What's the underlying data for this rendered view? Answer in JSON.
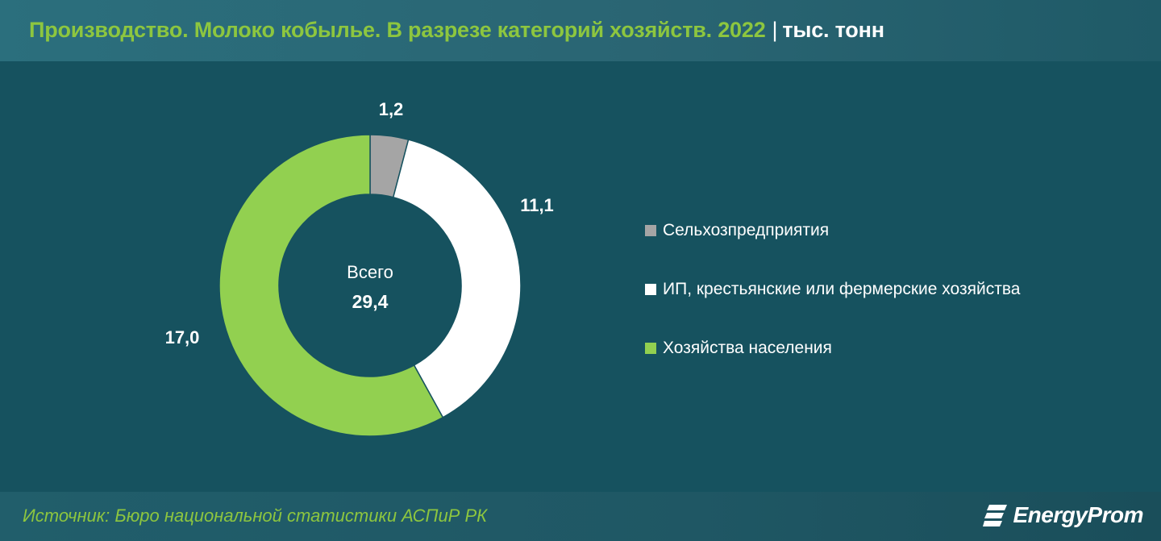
{
  "header": {
    "title": "Производство. Молоко кобылье. В разрезе категорий хозяйств. 2022",
    "separator": "|",
    "unit": "тыс. тонн"
  },
  "footer": {
    "source": "Источник: Бюро национальной статистики АСПиР РК",
    "logo_text": "EnergyProm"
  },
  "colors": {
    "background": "#16525f",
    "accent": "#8dc63f"
  },
  "chart_data": {
    "type": "pie",
    "style": "donut",
    "categories": [
      "Сельхозпредприятия",
      "ИП, крестьянские или фермерские хозяйства",
      "Хозяйства населения"
    ],
    "values": [
      1.2,
      11.1,
      17.0
    ],
    "labels": [
      "1,2",
      "11,1",
      "17,0"
    ],
    "colors": [
      "#a5a5a5",
      "#ffffff",
      "#92d050"
    ],
    "center_label": "Всего",
    "center_value": "29,4",
    "legend_position": "right"
  }
}
